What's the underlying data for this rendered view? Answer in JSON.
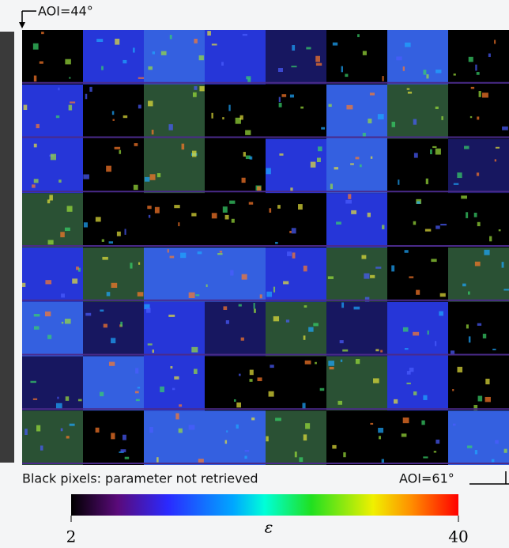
{
  "top_label": "AOI=44°",
  "bottom_left_note": "Black pixels: parameter not retrieved",
  "bottom_right_label": "AOI=61°",
  "colorbar": {
    "label": "ε",
    "min": 2,
    "max": 40
  }
}
